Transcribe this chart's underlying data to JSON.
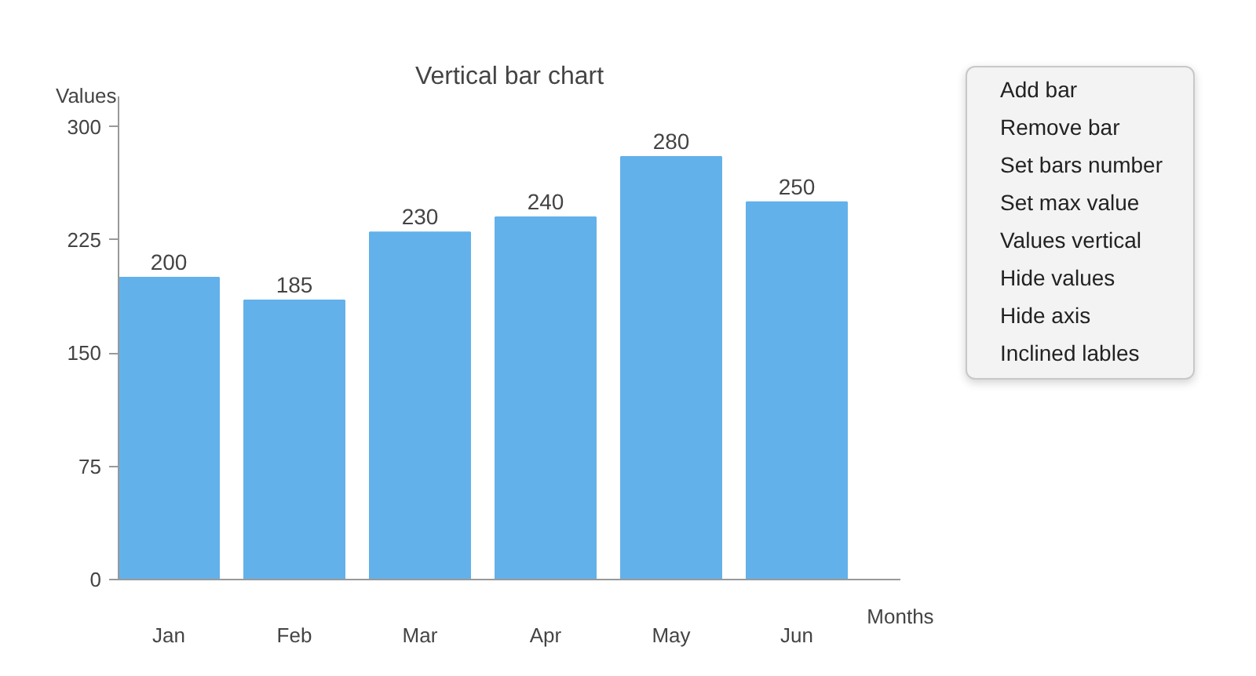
{
  "chart_data": {
    "type": "bar",
    "title": "Vertical bar chart",
    "xlabel": "Months",
    "ylabel": "Values",
    "categories": [
      "Jan",
      "Feb",
      "Mar",
      "Apr",
      "May",
      "Jun"
    ],
    "values": [
      200,
      185,
      230,
      240,
      280,
      250
    ],
    "color": "#63b1ea",
    "ylim": [
      0,
      320
    ],
    "yticks": [
      0,
      75,
      150,
      225,
      300
    ],
    "data_labels": true,
    "annotations": [
      "Add bar",
      "Remove bar",
      "Set bars number",
      "Set max value",
      "Values vertical",
      "Hide values",
      "Hide axis",
      "Inclined lables"
    ]
  }
}
